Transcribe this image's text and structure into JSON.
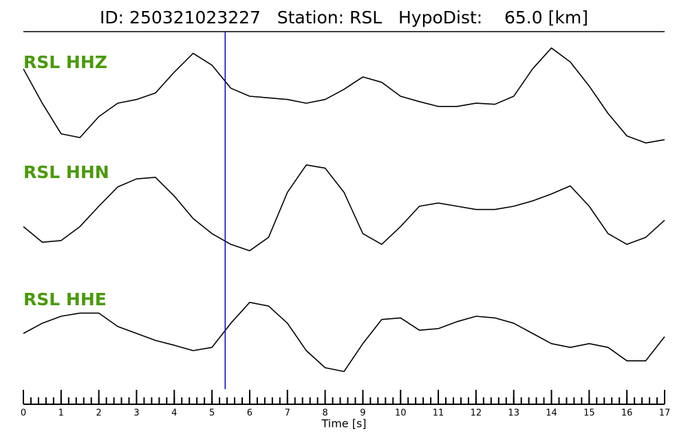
{
  "chart_data": {
    "type": "line",
    "title": "ID: 250321023227   Station: RSL   HypoDist:    65.0 [km]",
    "xlabel": "Time [s]",
    "xlim": [
      0,
      17
    ],
    "xticks": [
      0,
      1,
      2,
      3,
      4,
      5,
      6,
      7,
      8,
      9,
      10,
      11,
      12,
      13,
      14,
      15,
      16,
      17
    ],
    "xminor_step": 0.2,
    "ylim": [
      -1,
      1
    ],
    "pick_time": 5.35,
    "pick_color": "#0000cc",
    "label_color": "#4a9a0a",
    "x": [
      0,
      0.5,
      1,
      1.5,
      2,
      2.5,
      3,
      3.5,
      4,
      4.5,
      5,
      5.5,
      6,
      6.5,
      7,
      7.5,
      8,
      8.5,
      9,
      9.5,
      10,
      10.5,
      11,
      11.5,
      12,
      12.5,
      13,
      13.5,
      14,
      14.5,
      15,
      15.5,
      16,
      16.5,
      17
    ],
    "series": [
      {
        "name": "RSL HHZ",
        "color": "#000000",
        "values": [
          0.51,
          -0.13,
          -0.7,
          -0.77,
          -0.38,
          -0.13,
          -0.06,
          0.06,
          0.45,
          0.8,
          0.58,
          0.15,
          0,
          -0.03,
          -0.06,
          -0.13,
          -0.06,
          0.13,
          0.36,
          0.26,
          0,
          -0.1,
          -0.19,
          -0.19,
          -0.13,
          -0.15,
          0,
          0.51,
          0.9,
          0.64,
          0.19,
          -0.32,
          -0.74,
          -0.87,
          -0.81
        ]
      },
      {
        "name": "RSL HHN",
        "color": "#000000",
        "values": [
          -0.38,
          -0.67,
          -0.64,
          -0.38,
          0,
          0.36,
          0.51,
          0.54,
          0.19,
          -0.23,
          -0.51,
          -0.71,
          -0.83,
          -0.58,
          0.26,
          0.77,
          0.71,
          0.26,
          -0.51,
          -0.71,
          -0.38,
          0,
          0.06,
          0,
          -0.06,
          -0.06,
          0,
          0.1,
          0.23,
          0.38,
          0,
          -0.51,
          -0.71,
          -0.58,
          -0.26
        ]
      },
      {
        "name": "RSL HHE",
        "color": "#000000",
        "values": [
          0,
          0.19,
          0.32,
          0.38,
          0.38,
          0.13,
          0,
          -0.13,
          -0.22,
          -0.32,
          -0.26,
          0.19,
          0.58,
          0.51,
          0.19,
          -0.32,
          -0.64,
          -0.71,
          -0.19,
          0.26,
          0.29,
          0.06,
          0.09,
          0.22,
          0.32,
          0.29,
          0.19,
          0,
          -0.19,
          -0.26,
          -0.19,
          -0.26,
          -0.51,
          -0.51,
          -0.06
        ]
      }
    ]
  }
}
